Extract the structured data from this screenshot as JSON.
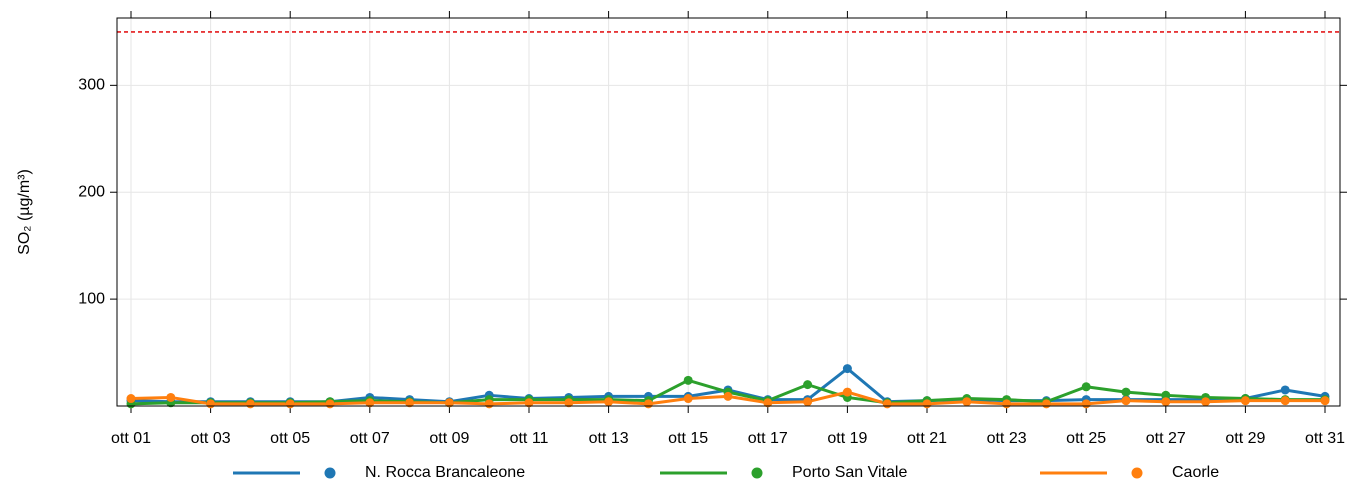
{
  "chart_data": {
    "type": "line",
    "y_label": "SO₂ (µg/m³)",
    "categories": [
      "ott 01",
      null,
      "ott 03",
      null,
      "ott 05",
      null,
      "ott 07",
      null,
      "ott 09",
      null,
      "ott 11",
      null,
      "ott 13",
      null,
      "ott 15",
      null,
      "ott 17",
      null,
      "ott 19",
      null,
      "ott 21",
      null,
      "ott 23",
      null,
      "ott 25",
      null,
      "ott 27",
      null,
      "ott 29",
      null,
      "ott 31"
    ],
    "series": [
      {
        "name": "N. Rocca Brancaleone",
        "color": "#1f77b4",
        "values": [
          5,
          4,
          4,
          4,
          4,
          4,
          8,
          6,
          4,
          10,
          7,
          8,
          9,
          9,
          9,
          15,
          6,
          6,
          35,
          4,
          5,
          6,
          5,
          5,
          6,
          6,
          6,
          6,
          7,
          15,
          9
        ]
      },
      {
        "name": "Porto San Vitale",
        "color": "#2ca02c",
        "values": [
          2,
          3,
          3,
          3,
          3,
          4,
          5,
          4,
          3,
          6,
          6,
          6,
          6,
          5,
          24,
          13,
          5,
          20,
          8,
          3,
          5,
          7,
          6,
          4,
          18,
          13,
          10,
          8,
          7,
          6,
          6
        ]
      },
      {
        "name": "Caorle",
        "color": "#ff7f0e",
        "values": [
          7,
          8,
          2,
          2,
          2,
          2,
          3,
          3,
          3,
          2,
          3,
          3,
          4,
          2,
          7,
          9,
          3,
          4,
          13,
          2,
          2,
          4,
          2,
          2,
          2,
          5,
          4,
          4,
          5,
          5,
          5
        ]
      }
    ],
    "reference_line": {
      "value": 350,
      "color": "#e41a1c"
    },
    "ylim": [
      0,
      363
    ],
    "yticks": [
      100,
      200,
      300
    ],
    "grid": true,
    "legend": "bottom"
  }
}
